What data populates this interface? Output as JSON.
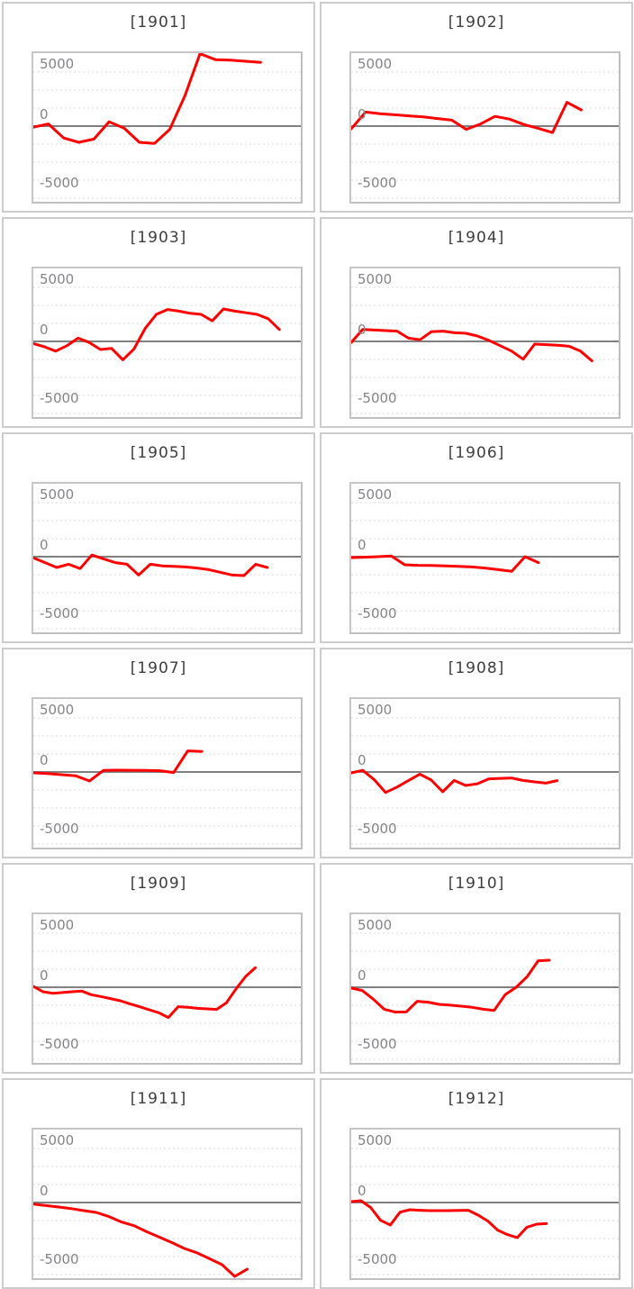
{
  "page": {
    "description": "Grid of twelve small-multiple line charts, one per group 1901-1912, red series around a gray zero axis"
  },
  "chart_data": {
    "type": "line",
    "layout": "small-multiples-2x6",
    "shared": {
      "yticks": [
        {
          "label": "5000",
          "value": 5000
        },
        {
          "label": "0",
          "value": 0
        },
        {
          "label": "-5000",
          "value": -5000
        }
      ],
      "ylim": [
        -7000,
        6750
      ],
      "grid": "dotted horizontal minor lines",
      "zero_line": true,
      "zero_line_color": "#808080",
      "grid_color": "#d8d8d8",
      "line_color": "#ff0000",
      "xlabel": "",
      "ylabel": "",
      "legend": "none"
    },
    "charts": [
      {
        "title": "[1901]",
        "end_frac": 0.85,
        "values": [
          -100,
          200,
          -1100,
          -1500,
          -1200,
          400,
          -200,
          -1500,
          -1600,
          -300,
          2800,
          6700,
          6150,
          6100,
          6000,
          5900
        ]
      },
      {
        "title": "[1902]",
        "end_frac": 0.86,
        "values": [
          -250,
          1300,
          1150,
          1050,
          950,
          850,
          700,
          550,
          -300,
          200,
          900,
          650,
          150,
          -200,
          -600,
          2200,
          1500
        ]
      },
      {
        "title": "[1903]",
        "end_frac": 0.92,
        "values": [
          -200,
          -500,
          -900,
          -400,
          300,
          -100,
          -750,
          -650,
          -1700,
          -700,
          1200,
          2500,
          2950,
          2800,
          2600,
          2500,
          1900,
          3000,
          2800,
          2650,
          2500,
          2100,
          1100
        ]
      },
      {
        "title": "[1904]",
        "end_frac": 0.9,
        "values": [
          -100,
          1100,
          1050,
          1000,
          950,
          300,
          150,
          900,
          950,
          800,
          750,
          500,
          100,
          -400,
          -900,
          -1650,
          -250,
          -300,
          -350,
          -450,
          -900,
          -1800
        ]
      },
      {
        "title": "[1905]",
        "end_frac": 0.875,
        "values": [
          -100,
          -550,
          -1000,
          -700,
          -1100,
          150,
          -200,
          -550,
          -700,
          -1700,
          -700,
          -850,
          -900,
          -950,
          -1050,
          -1200,
          -1450,
          -1700,
          -1750,
          -700,
          -1000
        ]
      },
      {
        "title": "[1906]",
        "end_frac": 0.7,
        "values": [
          -80,
          -50,
          0,
          70,
          -750,
          -800,
          -820,
          -850,
          -900,
          -950,
          -1050,
          -1200,
          -1350,
          0,
          -550
        ]
      },
      {
        "title": "[1907]",
        "end_frac": 0.63,
        "values": [
          -80,
          -150,
          -250,
          -350,
          -830,
          150,
          170,
          160,
          150,
          120,
          -50,
          1950,
          1900
        ]
      },
      {
        "title": "[1908]",
        "end_frac": 0.77,
        "values": [
          -80,
          150,
          -700,
          -1900,
          -1400,
          -800,
          -200,
          -750,
          -1830,
          -780,
          -1250,
          -1100,
          -640,
          -590,
          -560,
          -780,
          -920,
          -1030,
          -800
        ]
      },
      {
        "title": "[1909]",
        "end_frac": 0.83,
        "values": [
          80,
          -420,
          -560,
          -490,
          -420,
          -350,
          -690,
          -860,
          -1050,
          -1250,
          -1530,
          -1800,
          -2080,
          -2360,
          -2800,
          -1800,
          -1860,
          -1950,
          -2000,
          -2050,
          -1440,
          -150,
          1000,
          1800
        ]
      },
      {
        "title": "[1910]",
        "end_frac": 0.74,
        "values": [
          -80,
          -300,
          -1100,
          -2030,
          -2300,
          -2280,
          -1300,
          -1380,
          -1580,
          -1660,
          -1750,
          -1860,
          -2030,
          -2140,
          -690,
          0,
          980,
          2450,
          2500
        ]
      },
      {
        "title": "[1911]",
        "end_frac": 0.8,
        "values": [
          -140,
          -280,
          -420,
          -560,
          -750,
          -920,
          -1300,
          -1800,
          -2140,
          -2700,
          -3200,
          -3700,
          -4250,
          -4650,
          -5200,
          -5750,
          -6830,
          -6160
        ]
      },
      {
        "title": "[1912]",
        "end_frac": 0.73,
        "values": [
          80,
          170,
          -470,
          -1640,
          -2080,
          -890,
          -670,
          -720,
          -750,
          -750,
          -750,
          -730,
          -720,
          -1170,
          -1720,
          -2550,
          -2970,
          -3250,
          -2280,
          -2000,
          -1950
        ]
      }
    ]
  }
}
